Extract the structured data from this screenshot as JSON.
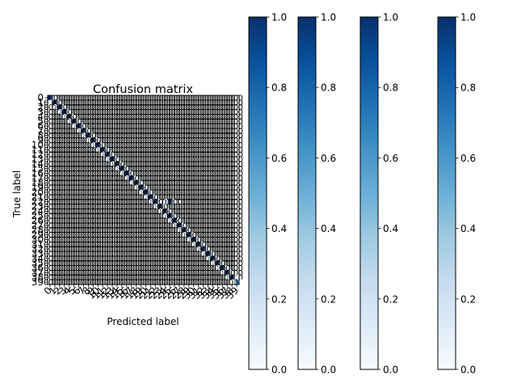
{
  "chart_data": [
    {
      "type": "heatmap",
      "title": "Confusion matrix",
      "xlabel": "Predicted label",
      "ylabel": "True label",
      "n_classes": 40,
      "class_labels": [
        "0",
        "1",
        "2",
        "3",
        "4",
        "5",
        "6",
        "7",
        "8",
        "9",
        "10",
        "11",
        "12",
        "13",
        "14",
        "15",
        "16",
        "17",
        "18",
        "19",
        "20",
        "21",
        "22",
        "23",
        "24",
        "25",
        "26",
        "27",
        "28",
        "29",
        "30",
        "31",
        "32",
        "33",
        "34",
        "35",
        "36",
        "37",
        "38",
        "39"
      ],
      "diagonal_value": "1.0",
      "off_diagonal_value": "0.0",
      "annotations": [
        {
          "row": 22,
          "col": 26,
          "value": "0.1"
        },
        {
          "row": 39,
          "col": 39,
          "value": "0.6"
        }
      ],
      "cells": [
        {
          "row": 22,
          "col": 25,
          "value": 0.9
        },
        {
          "row": 22,
          "col": 26,
          "value": 0.1
        },
        {
          "row": 39,
          "col": 39,
          "value": 0.6
        }
      ],
      "colormap": "Blues",
      "value_range": [
        0,
        1
      ]
    },
    {
      "type": "colorbar",
      "count": 4,
      "ticks": [
        "0.0",
        "0.2",
        "0.4",
        "0.6",
        "0.8",
        "1.0"
      ],
      "range": [
        0,
        1
      ],
      "colormap": "Blues"
    }
  ],
  "colors": {
    "cmap_low": "#f7fbff",
    "cmap_high": "#08306b",
    "text_on_dark": "#ffffff",
    "text_on_light": "#000000"
  }
}
